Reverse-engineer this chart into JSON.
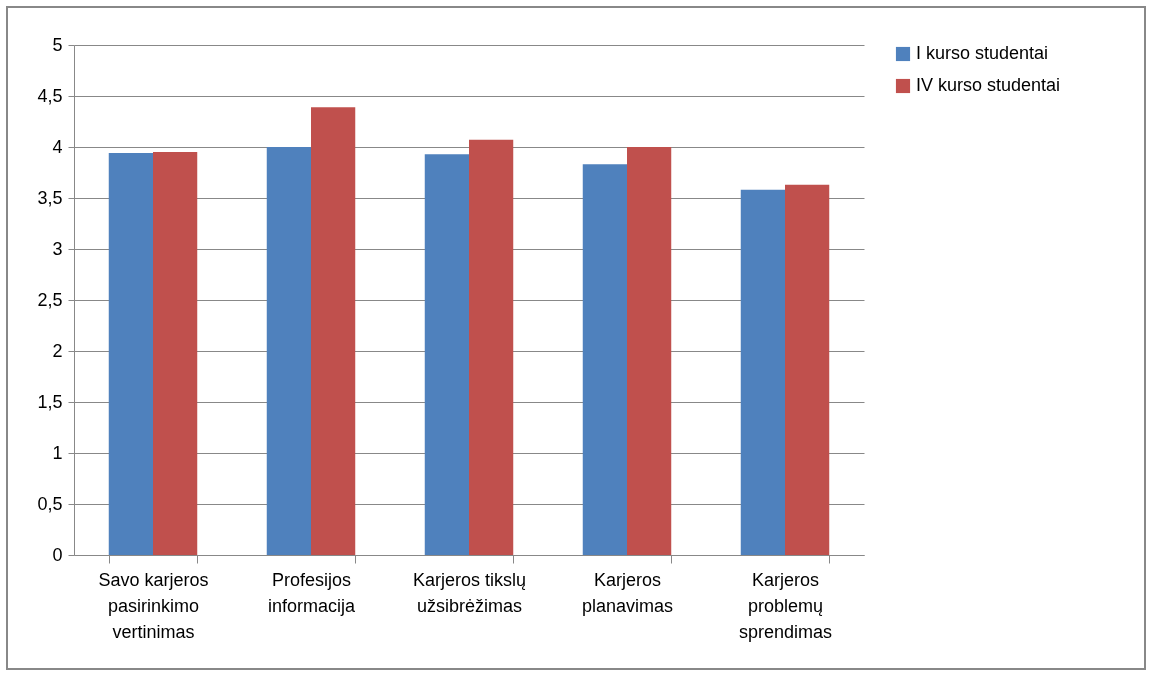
{
  "chart_data": {
    "type": "bar",
    "categories": [
      "Savo karjeros pasirinkimo vertinimas",
      "Profesijos informacija",
      "Karjeros tikslų užsibrėžimas",
      "Karjeros planavimas",
      "Karjeros problemų sprendimas"
    ],
    "series": [
      {
        "name": "I kurso studentai",
        "color": "#4f81bd",
        "values": [
          3.94,
          4.0,
          3.93,
          3.83,
          3.58
        ]
      },
      {
        "name": "IV kurso studentai",
        "color": "#c0504d",
        "values": [
          3.95,
          4.39,
          4.07,
          4.0,
          3.63
        ]
      }
    ],
    "ylim": [
      0,
      5
    ],
    "yticks": [
      {
        "value": 0,
        "label": "0"
      },
      {
        "value": 0.5,
        "label": "0,5"
      },
      {
        "value": 1,
        "label": "1"
      },
      {
        "value": 1.5,
        "label": "1,5"
      },
      {
        "value": 2,
        "label": "2"
      },
      {
        "value": 2.5,
        "label": "2,5"
      },
      {
        "value": 3,
        "label": "3"
      },
      {
        "value": 3.5,
        "label": "3,5"
      },
      {
        "value": 4,
        "label": "4"
      },
      {
        "value": 4.5,
        "label": "4,5"
      },
      {
        "value": 5,
        "label": "5"
      }
    ],
    "grid": "y",
    "legend": "right"
  }
}
